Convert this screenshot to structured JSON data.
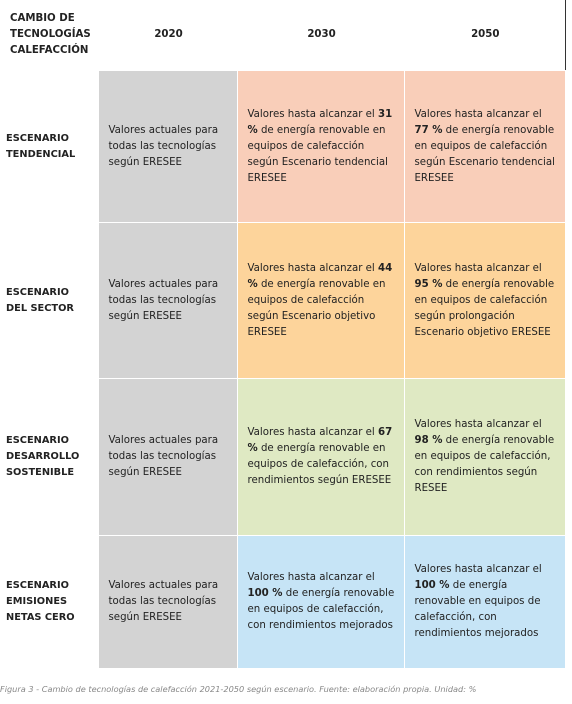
{
  "header": {
    "title": "CAMBIO DE TECNOLOGÍAS CALEFACCIÓN",
    "columns": [
      "2020",
      "2030",
      "2050"
    ]
  },
  "rows": [
    {
      "label": "ESCENARIO TENDENCIAL",
      "cells": [
        {
          "before": "Valores actuales para todas las tecnologías según ERESEE"
        },
        {
          "before": "Valores hasta alcanzar el ",
          "bold": "31 %",
          "after": " de energía renovable en equipos de calefacción según Escenario tendencial ERESEE"
        },
        {
          "before": "Valores hasta alcanzar el ",
          "bold": "77 %",
          "after": " de energía renovable en equipos de calefacción según Escenario tendencial ERESEE"
        }
      ]
    },
    {
      "label": "ESCENARIO DEL SECTOR",
      "cells": [
        {
          "before": "Valores actuales para todas las tecnologías según ERESEE"
        },
        {
          "before": "Valores hasta alcanzar el ",
          "bold": "44 %",
          "after": " de energía renovable en equipos de calefacción según Escenario objetivo ERESEE"
        },
        {
          "before": "Valores hasta alcanzar el ",
          "bold": "95 %",
          "after": " de energía renovable en equipos de calefacción según prolongación Escenario objetivo ERESEE"
        }
      ]
    },
    {
      "label": "ESCENARIO DESARROLLO SOSTENIBLE",
      "cells": [
        {
          "before": "Valores actuales para todas las tecnologías según ERESEE"
        },
        {
          "before": "Valores hasta alcanzar el ",
          "bold": "67 %",
          "after": " de energía renovable en equipos de calefacción, con rendimientos según ERESEE"
        },
        {
          "before": "Valores hasta alcanzar el ",
          "bold": "98 %",
          "after": " de energía renovable en equipos de calefacción, con rendimientos según RESEE"
        }
      ]
    },
    {
      "label": "ESCENARIO EMISIONES NETAS CERO",
      "cells": [
        {
          "before": "Valores actuales para todas las tecnologías según ERESEE"
        },
        {
          "before": "Valores hasta alcanzar el ",
          "bold": "100 %",
          "after": " de energía renovable en equipos de calefacción, con rendimientos mejorados"
        },
        {
          "before": "Valores hasta alcanzar el ",
          "bold": "100 %",
          "after": " de energía renovable en equipos de calefacción, con rendimientos mejorados"
        }
      ]
    }
  ],
  "caption": "Figura 3 - Cambio de tecnologías de calefacción 2021-2050 según escenario. Fuente: elaboración propia. Unidad: %"
}
